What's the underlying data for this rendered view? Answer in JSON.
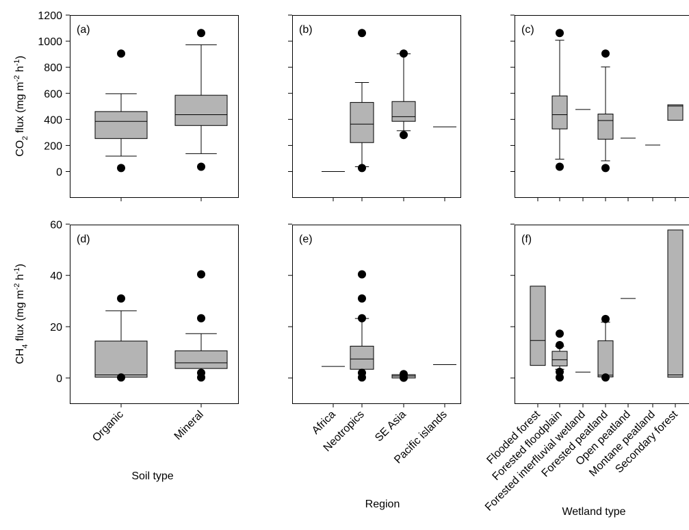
{
  "chart_data": [
    {
      "type": "box",
      "panel_label": "(a)",
      "ylabel_parts": {
        "pre": "CO",
        "sub": "2",
        "mid": " flux (mg m",
        "sup": "-2",
        "mid2": " h",
        "sup2": "-1",
        "post": ")"
      },
      "xlabel": "Soil type",
      "categories": [
        "Organic",
        "Mineral"
      ],
      "ylim": [
        -180,
        1200
      ],
      "yticks": [
        0,
        200,
        400,
        600,
        800,
        1000,
        1200
      ],
      "boxes": [
        {
          "q1": 253,
          "median": 385,
          "q3": 460,
          "whisker_low": 118,
          "whisker_high": 597,
          "outliers": [
            27,
            905
          ]
        },
        {
          "q1": 353,
          "median": 436,
          "q3": 585,
          "whisker_low": 137,
          "whisker_high": 972,
          "outliers": [
            37,
            1062
          ]
        }
      ]
    },
    {
      "type": "box",
      "panel_label": "(b)",
      "xlabel": "Region",
      "categories": [
        "Africa",
        "Neotropics",
        "SE Asia",
        "Pacific islands"
      ],
      "ylim": [
        -180,
        1200
      ],
      "yticks": [
        0,
        200,
        400,
        600,
        800,
        1000,
        1200
      ],
      "boxes": [
        {
          "single": 0
        },
        {
          "q1": 222,
          "median": 364,
          "q3": 530,
          "whisker_low": 37,
          "whisker_high": 683,
          "outliers": [
            27,
            1062
          ]
        },
        {
          "q1": 385,
          "median": 421,
          "q3": 537,
          "whisker_low": 313,
          "whisker_high": 903,
          "outliers": [
            280,
            905
          ]
        },
        {
          "single": 343
        }
      ]
    },
    {
      "type": "box",
      "panel_label": "(c)",
      "xlabel": "Wetland type",
      "categories": [
        "Flooded forest",
        "Forested floodplain",
        "Forested interfluvial wetland",
        "Forested peatland",
        "Open peatland",
        "Montane peatland",
        "Secondary forest"
      ],
      "ylim": [
        -180,
        1200
      ],
      "yticks": [
        0,
        200,
        400,
        600,
        800,
        1000,
        1200
      ],
      "boxes": [
        {},
        {
          "q1": 327,
          "median": 436,
          "q3": 580,
          "whisker_low": 95,
          "whisker_high": 1007,
          "outliers": [
            37,
            1062
          ]
        },
        {
          "single": 476
        },
        {
          "q1": 248,
          "median": 391,
          "q3": 441,
          "whisker_low": 82,
          "whisker_high": 802,
          "outliers": [
            27,
            905
          ]
        },
        {
          "single": 256
        },
        {
          "single": 203
        },
        {
          "q1": 393,
          "median": 502,
          "q3": 512,
          "whisker_low": 393,
          "whisker_high": 512
        }
      ]
    },
    {
      "type": "box",
      "panel_label": "(d)",
      "ylabel_parts": {
        "pre": "CH",
        "sub": "4",
        "mid": " flux (mg m",
        "sup": "-2",
        "mid2": " h",
        "sup2": "-1",
        "post": ")"
      },
      "xlabel": "Soil type",
      "categories": [
        "Organic",
        "Mineral"
      ],
      "ylim": [
        -10,
        60
      ],
      "yticks": [
        0,
        20,
        40,
        60
      ],
      "boxes": [
        {
          "q1": 0.3,
          "median": 1.2,
          "q3": 14.4,
          "whisker_low": 0.3,
          "whisker_high": 26.2,
          "outliers": [
            0.2,
            31
          ]
        },
        {
          "q1": 3.7,
          "median": 5.9,
          "q3": 10.6,
          "whisker_low": 3.7,
          "whisker_high": 17.3,
          "outliers": [
            0.2,
            2,
            23.3,
            40.4
          ]
        }
      ]
    },
    {
      "type": "box",
      "panel_label": "(e)",
      "xlabel": "Region",
      "categories": [
        "Africa",
        "Neotropics",
        "SE Asia",
        "Pacific islands"
      ],
      "ylim": [
        -10,
        60
      ],
      "yticks": [
        0,
        20,
        40,
        60
      ],
      "boxes": [
        {
          "single": 4.5
        },
        {
          "q1": 3.4,
          "median": 7.4,
          "q3": 12.4,
          "whisker_low": 3.4,
          "whisker_high": 23.2,
          "outliers": [
            0.2,
            2,
            23.3,
            31,
            40.4
          ]
        },
        {
          "q1": 0,
          "median": 0.8,
          "q3": 1.3,
          "whisker_low": 0,
          "whisker_high": 1.3,
          "outliers": [
            0.1,
            1.5
          ]
        },
        {
          "single": 5.2
        }
      ]
    },
    {
      "type": "box",
      "panel_label": "(f)",
      "xlabel": "Wetland type",
      "categories": [
        "Flooded forest",
        "Forested floodplain",
        "Forested interfluvial wetland",
        "Forested peatland",
        "Open peatland",
        "Montane peatland",
        "Secondary forest"
      ],
      "ylim": [
        -10,
        60
      ],
      "yticks": [
        0,
        20,
        40,
        60
      ],
      "boxes": [
        {
          "q1": 4.9,
          "median": 14.6,
          "q3": 35.8,
          "whisker_low": 4.9,
          "whisker_high": 35.8
        },
        {
          "q1": 4.7,
          "median": 7.1,
          "q3": 10.4,
          "whisker_low": 3.4,
          "whisker_high": 12.4,
          "outliers": [
            0.2,
            2.4,
            12.8,
            17.3
          ]
        },
        {
          "single": 2.3
        },
        {
          "q1": 0.4,
          "median": 1.1,
          "q3": 14.5,
          "whisker_low": 0.4,
          "whisker_high": 21.8,
          "outliers": [
            0.2,
            23
          ]
        },
        {
          "single": 31
        },
        {},
        {
          "q1": 0.3,
          "median": 1.2,
          "q3": 57.7,
          "whisker_low": 0.3,
          "whisker_high": 57.7
        }
      ]
    }
  ]
}
